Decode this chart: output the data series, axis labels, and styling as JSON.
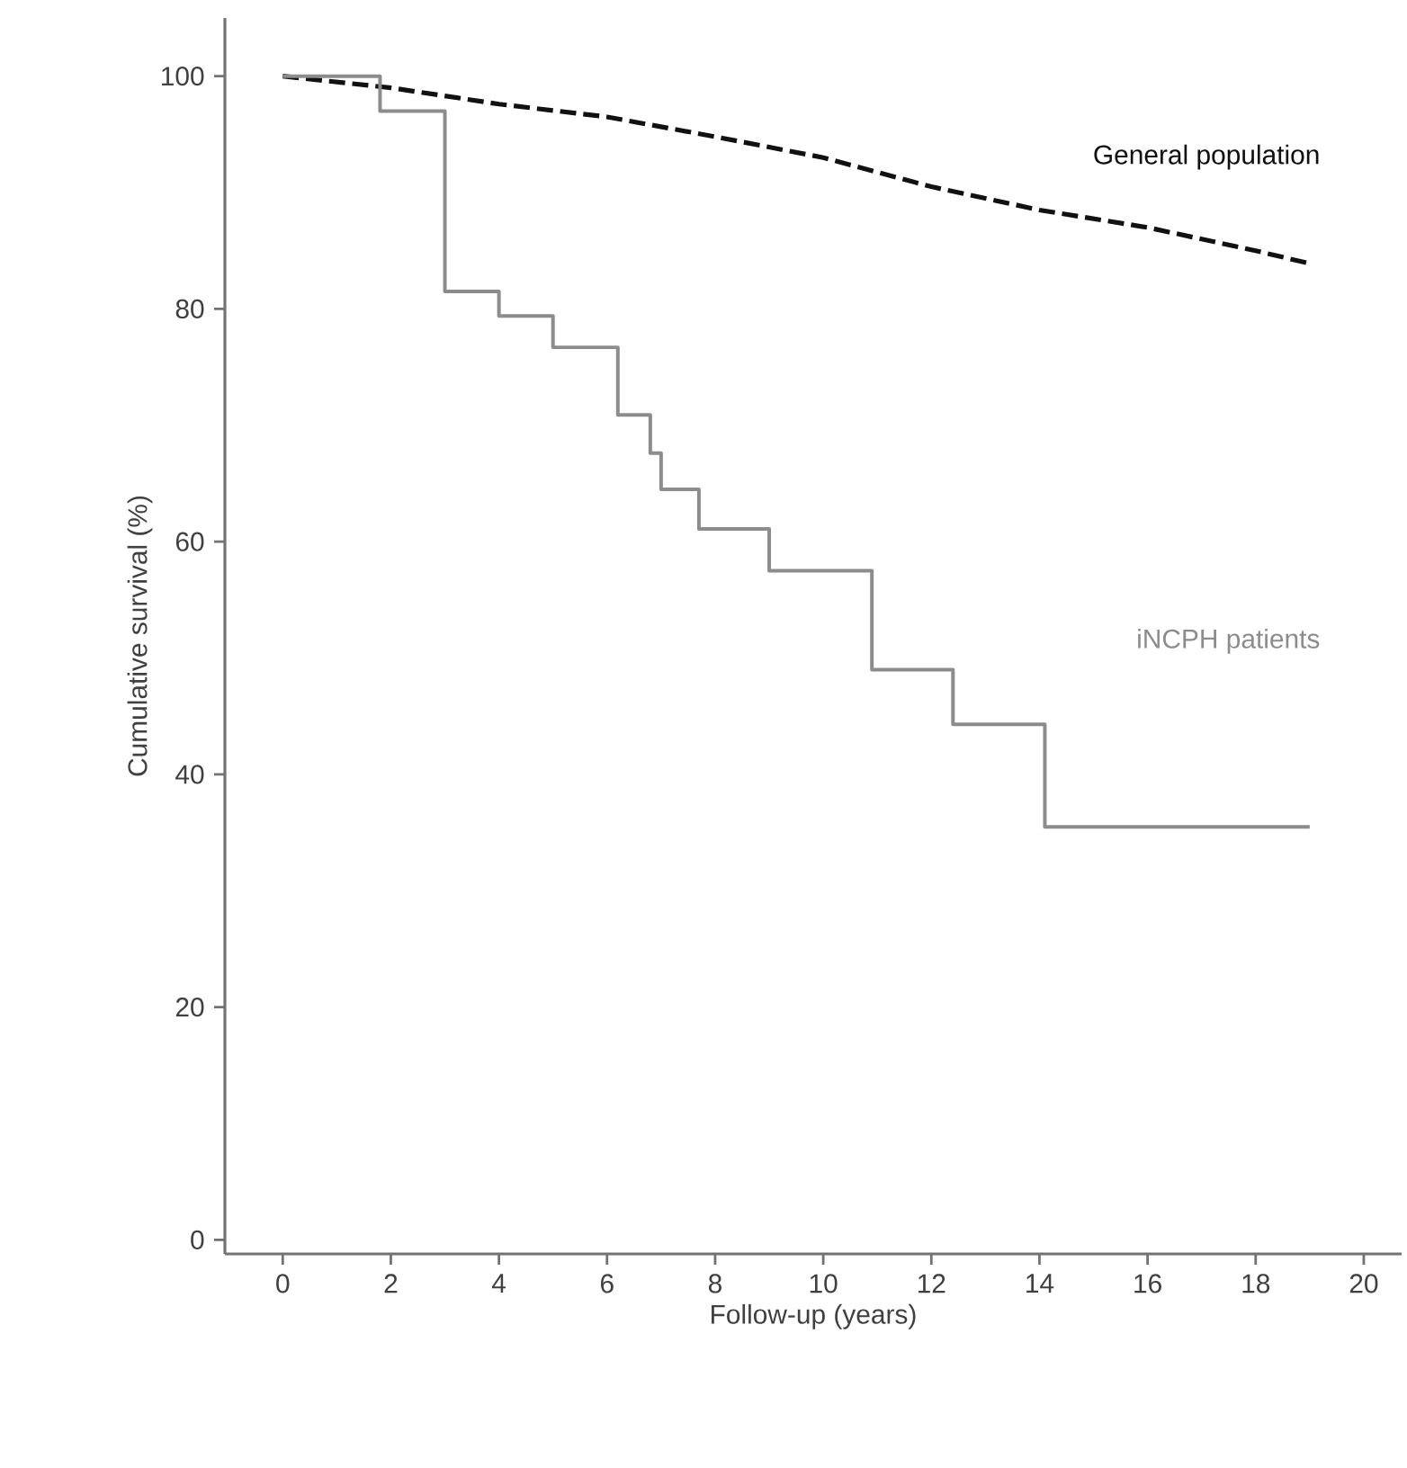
{
  "chart_data": {
    "type": "line",
    "xlabel": "Follow-up (years)",
    "ylabel": "Cumulative survival (%)",
    "xlim": [
      -1.07,
      20.7
    ],
    "ylim": [
      -1.2,
      105
    ],
    "xticks": [
      0,
      2,
      4,
      6,
      8,
      10,
      12,
      14,
      16,
      18,
      20
    ],
    "yticks": [
      0,
      20,
      40,
      60,
      80,
      100
    ],
    "marker": "none",
    "series": [
      {
        "name": "General population",
        "color": "#111111",
        "line_style": "dashed",
        "x": [
          0,
          2,
          4,
          6,
          8,
          10,
          12,
          14,
          16,
          18,
          19
        ],
        "values": [
          100,
          99,
          97.6,
          96.5,
          94.8,
          93,
          90.5,
          88.5,
          87,
          85,
          83.9
        ]
      },
      {
        "name": "iNCPH patients",
        "type": "step",
        "color": "#8c8c8c",
        "line_style": "solid",
        "x": [
          0,
          1.8,
          3.0,
          4.0,
          5.0,
          6.2,
          6.8,
          7.0,
          7.7,
          9.0,
          10.9,
          12.4,
          14.1,
          19.0
        ],
        "values": [
          100,
          97,
          81.5,
          79.4,
          76.7,
          70.9,
          67.6,
          64.5,
          61.1,
          57.5,
          49,
          44.3,
          35.5,
          35.5
        ]
      }
    ]
  }
}
